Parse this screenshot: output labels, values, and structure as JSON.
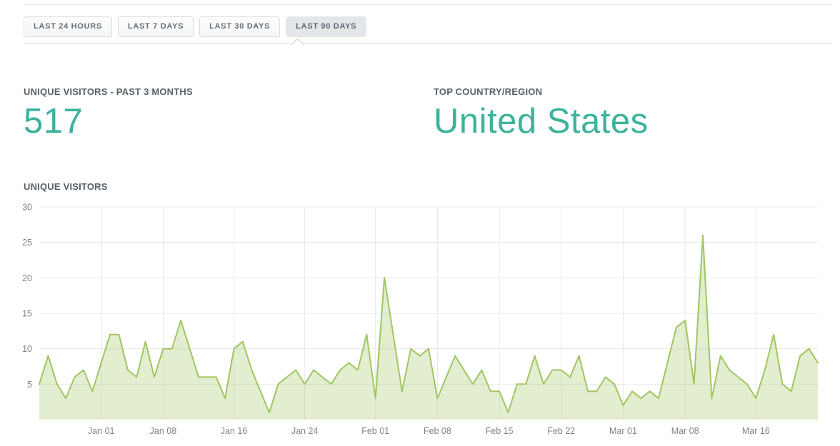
{
  "toolbar": {
    "buttons": [
      {
        "label": "LAST 24 HOURS",
        "selected": false
      },
      {
        "label": "LAST 7 DAYS",
        "selected": false
      },
      {
        "label": "LAST 30 DAYS",
        "selected": false
      },
      {
        "label": "LAST 90 DAYS",
        "selected": true
      }
    ]
  },
  "stats": [
    {
      "label": "UNIQUE VISITORS - PAST 3 MONTHS",
      "value": "517"
    },
    {
      "label": "TOP COUNTRY/REGION",
      "value": "United States"
    }
  ],
  "colors": {
    "accent_teal": "#3db29c",
    "heading_gray": "#566069",
    "axis_text": "#7b858e",
    "grid": "#e8e8e8",
    "chart_line": "#a0c661",
    "chart_fill": "rgba(160,198,97,0.3)",
    "divider": "#d4d6d8"
  },
  "chart_data": {
    "type": "area",
    "title": "UNIQUE VISITORS",
    "ylabel": "",
    "xlabel": "",
    "ylim": [
      0,
      30
    ],
    "y_ticks": [
      5,
      10,
      15,
      20,
      25,
      30
    ],
    "grid": true,
    "legend": "none",
    "x_tick_labels": [
      "Jan 01",
      "Jan 08",
      "Jan 16",
      "Jan 24",
      "Feb 01",
      "Feb 08",
      "Feb 15",
      "Feb 22",
      "Mar 01",
      "Mar 08",
      "Mar 16"
    ],
    "x_tick_indices": [
      7,
      14,
      22,
      30,
      38,
      45,
      52,
      59,
      66,
      73,
      81
    ],
    "values": [
      5,
      9,
      5,
      3,
      6,
      7,
      4,
      8,
      12,
      12,
      7,
      6,
      11,
      6,
      10,
      10,
      14,
      10,
      6,
      6,
      6,
      3,
      10,
      11,
      7,
      4,
      1,
      5,
      6,
      7,
      5,
      7,
      6,
      5,
      7,
      8,
      7,
      12,
      3,
      20,
      12,
      4,
      10,
      9,
      10,
      3,
      6,
      9,
      7,
      5,
      7,
      4,
      4,
      1,
      5,
      5,
      9,
      5,
      7,
      7,
      6,
      9,
      4,
      4,
      6,
      5,
      2,
      4,
      3,
      4,
      3,
      8,
      13,
      14,
      5,
      26,
      3,
      9,
      7,
      6,
      5,
      3,
      7,
      12,
      5,
      4,
      9,
      10,
      8
    ]
  }
}
